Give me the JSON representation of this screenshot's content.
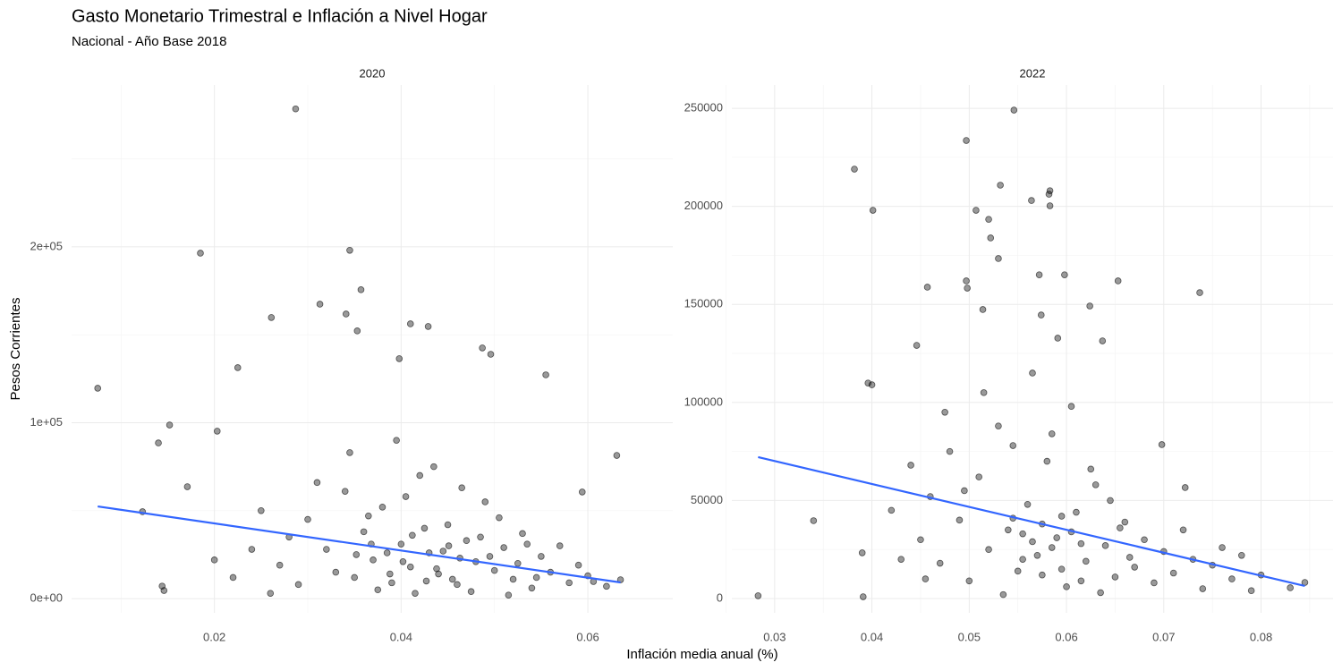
{
  "title": "Gasto Monetario Trimestral e Inflación a Nivel Hogar",
  "subtitle": "Nacional - Año Base 2018",
  "xlabel": "Inflación media anual (%)",
  "ylabel": "Pesos Corrientes",
  "chart_data": [
    {
      "type": "scatter",
      "title": "2020",
      "point_color": "#000000",
      "grid": true,
      "xlim": [
        0.0047,
        0.0691
      ],
      "ylim": [
        -8100,
        292000
      ],
      "xticks": [
        0.02,
        0.04,
        0.06
      ],
      "x_minor_ticks": [
        0.01,
        0.03,
        0.05
      ],
      "yticks": [
        {
          "value": 0,
          "label": "0e+00"
        },
        {
          "value": 100000,
          "label": "1e+05"
        },
        {
          "value": 200000,
          "label": "2e+05"
        }
      ],
      "y_minor_ticks": [
        50000,
        150000,
        250000
      ],
      "x": [
        0.0287,
        0.0075,
        0.0185,
        0.0345,
        0.0357,
        0.0313,
        0.0341,
        0.0261,
        0.041,
        0.0429,
        0.0353,
        0.0487,
        0.0496,
        0.0398,
        0.0555,
        0.0225,
        0.0152,
        0.014,
        0.0203,
        0.0631,
        0.0594,
        0.0171,
        0.0123,
        0.0144,
        0.0146,
        0.0606,
        0.0635,
        0.03,
        0.032,
        0.034,
        0.035,
        0.036,
        0.037,
        0.038,
        0.039,
        0.04,
        0.041,
        0.042,
        0.043,
        0.044,
        0.045,
        0.046,
        0.047,
        0.048,
        0.049,
        0.05,
        0.051,
        0.052,
        0.053,
        0.054,
        0.055,
        0.056,
        0.057,
        0.058,
        0.059,
        0.06,
        0.062,
        0.027,
        0.028,
        0.029,
        0.031,
        0.033,
        0.0345,
        0.0365,
        0.0375,
        0.0395,
        0.0405,
        0.0415,
        0.0425,
        0.0435,
        0.0445,
        0.0455,
        0.0465,
        0.0475,
        0.0485,
        0.0495,
        0.0505,
        0.0515,
        0.0525,
        0.0535,
        0.0545,
        0.024,
        0.022,
        0.02,
        0.025,
        0.026,
        0.0385,
        0.0412,
        0.0438,
        0.0463,
        0.0388,
        0.0402,
        0.0427,
        0.0451,
        0.0368,
        0.0352
      ],
      "values": [
        278400,
        119600,
        196400,
        198000,
        175600,
        167400,
        161800,
        159800,
        156200,
        154700,
        152200,
        142500,
        138900,
        136400,
        127200,
        131300,
        98700,
        88500,
        95200,
        81400,
        60600,
        63600,
        49400,
        7100,
        4600,
        9700,
        10700,
        45000,
        28000,
        61000,
        12000,
        38000,
        22000,
        52000,
        9000,
        31000,
        18000,
        70000,
        26000,
        14000,
        42000,
        8000,
        33000,
        21000,
        55000,
        16000,
        29000,
        11000,
        37000,
        6000,
        24000,
        15000,
        30000,
        9000,
        19000,
        13000,
        7000,
        19000,
        35000,
        8000,
        66000,
        15000,
        83000,
        47000,
        5000,
        90000,
        58000,
        3000,
        40000,
        75000,
        27000,
        11000,
        63000,
        4000,
        35000,
        24000,
        46000,
        2000,
        20000,
        31000,
        12000,
        28000,
        12000,
        22000,
        50000,
        3000,
        26000,
        36000,
        17000,
        23000,
        14000,
        21000,
        10000,
        30000,
        31000,
        25000
      ],
      "trend": {
        "color": "#3366ff",
        "x": [
          0.0075,
          0.0635
        ],
        "values": [
          52400,
          9200
        ]
      }
    },
    {
      "type": "scatter",
      "title": "2022",
      "point_color": "#000000",
      "grid": true,
      "xlim": [
        0.0256,
        0.0874
      ],
      "ylim": [
        -7300,
        261900
      ],
      "xticks": [
        0.03,
        0.04,
        0.05,
        0.06,
        0.07,
        0.08
      ],
      "x_minor_ticks": [
        0.025,
        0.035,
        0.045,
        0.055,
        0.065,
        0.075,
        0.085
      ],
      "yticks": [
        0,
        50000,
        100000,
        150000,
        200000,
        250000
      ],
      "y_minor_ticks": [
        25000,
        75000,
        125000,
        175000,
        225000
      ],
      "x": [
        0.0546,
        0.0497,
        0.0382,
        0.0532,
        0.0583,
        0.0582,
        0.0564,
        0.0583,
        0.0401,
        0.0507,
        0.052,
        0.0522,
        0.053,
        0.0572,
        0.0598,
        0.0653,
        0.0457,
        0.0737,
        0.0497,
        0.0498,
        0.0514,
        0.0624,
        0.0574,
        0.0637,
        0.0591,
        0.0446,
        0.0396,
        0.04,
        0.0283,
        0.034,
        0.039,
        0.0391,
        0.0722,
        0.0698,
        0.083,
        0.0845,
        0.045,
        0.046,
        0.047,
        0.048,
        0.049,
        0.05,
        0.051,
        0.052,
        0.053,
        0.054,
        0.055,
        0.056,
        0.057,
        0.058,
        0.059,
        0.06,
        0.061,
        0.062,
        0.063,
        0.064,
        0.065,
        0.066,
        0.067,
        0.068,
        0.069,
        0.07,
        0.071,
        0.072,
        0.073,
        0.074,
        0.075,
        0.076,
        0.077,
        0.078,
        0.079,
        0.08,
        0.042,
        0.043,
        0.044,
        0.0455,
        0.0475,
        0.0495,
        0.0515,
        0.0535,
        0.0545,
        0.0555,
        0.0565,
        0.0575,
        0.0585,
        0.0595,
        0.0605,
        0.0615,
        0.0625,
        0.0635,
        0.0645,
        0.0655,
        0.0665,
        0.0575,
        0.0585,
        0.0555,
        0.0595,
        0.0565,
        0.0605,
        0.0545,
        0.0615
      ],
      "values": [
        249100,
        233600,
        219000,
        210800,
        208000,
        206200,
        203000,
        200300,
        198000,
        198000,
        193400,
        183900,
        173400,
        165100,
        165100,
        162000,
        158800,
        156000,
        162000,
        158300,
        147400,
        149200,
        144600,
        131400,
        132800,
        129100,
        109900,
        109000,
        1400,
        39700,
        23300,
        900,
        56600,
        78500,
        5500,
        8200,
        30000,
        52000,
        18000,
        75000,
        40000,
        9000,
        62000,
        25000,
        88000,
        35000,
        14000,
        48000,
        22000,
        70000,
        31000,
        6000,
        44000,
        19000,
        58000,
        27000,
        11000,
        39000,
        16000,
        30000,
        8000,
        24000,
        13000,
        35000,
        20000,
        5000,
        17000,
        26000,
        10000,
        22000,
        4000,
        12000,
        45000,
        20000,
        68000,
        10000,
        95000,
        55000,
        105000,
        2000,
        78000,
        33000,
        115000,
        12000,
        84000,
        42000,
        98000,
        28000,
        66000,
        3000,
        50000,
        36000,
        21000,
        38000,
        26000,
        20000,
        15000,
        29000,
        34000,
        41000,
        9000
      ],
      "trend": {
        "color": "#3366ff",
        "x": [
          0.0283,
          0.0845
        ],
        "values": [
          72100,
          6400
        ]
      }
    }
  ]
}
